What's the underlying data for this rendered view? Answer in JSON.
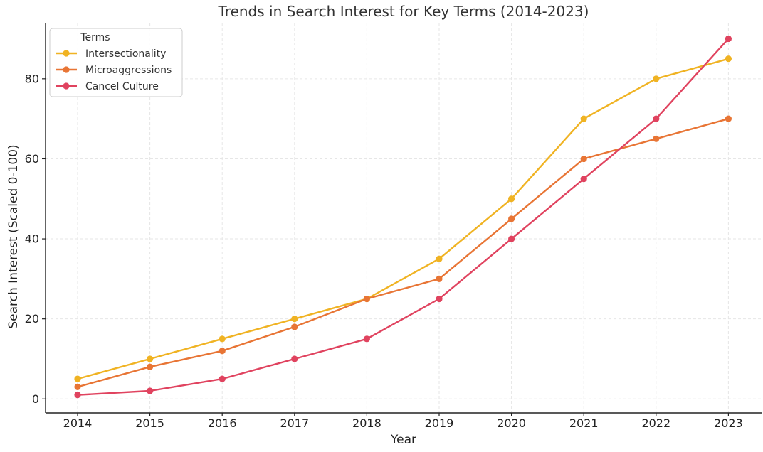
{
  "chart_data": {
    "type": "line",
    "title": "Trends in Search Interest for Key Terms (2014-2023)",
    "xlabel": "Year",
    "ylabel": "Search Interest (Scaled 0-100)",
    "x": [
      "2014",
      "2015",
      "2016",
      "2017",
      "2018",
      "2019",
      "2020",
      "2021",
      "2022",
      "2023"
    ],
    "ylim": [
      -3.5,
      94
    ],
    "yticks": [
      0,
      20,
      40,
      60,
      80
    ],
    "grid": true,
    "legend": {
      "title": "Terms",
      "position": "top-left"
    },
    "series": [
      {
        "name": "Intersectionality",
        "color": "#F0B323",
        "values": [
          5,
          10,
          15,
          20,
          25,
          35,
          50,
          70,
          80,
          85
        ]
      },
      {
        "name": "Microaggressions",
        "color": "#E87535",
        "values": [
          3,
          8,
          12,
          18,
          25,
          30,
          45,
          60,
          65,
          70
        ]
      },
      {
        "name": "Cancel Culture",
        "color": "#E0435F",
        "values": [
          1,
          2,
          5,
          10,
          15,
          25,
          40,
          55,
          70,
          90
        ]
      }
    ]
  }
}
